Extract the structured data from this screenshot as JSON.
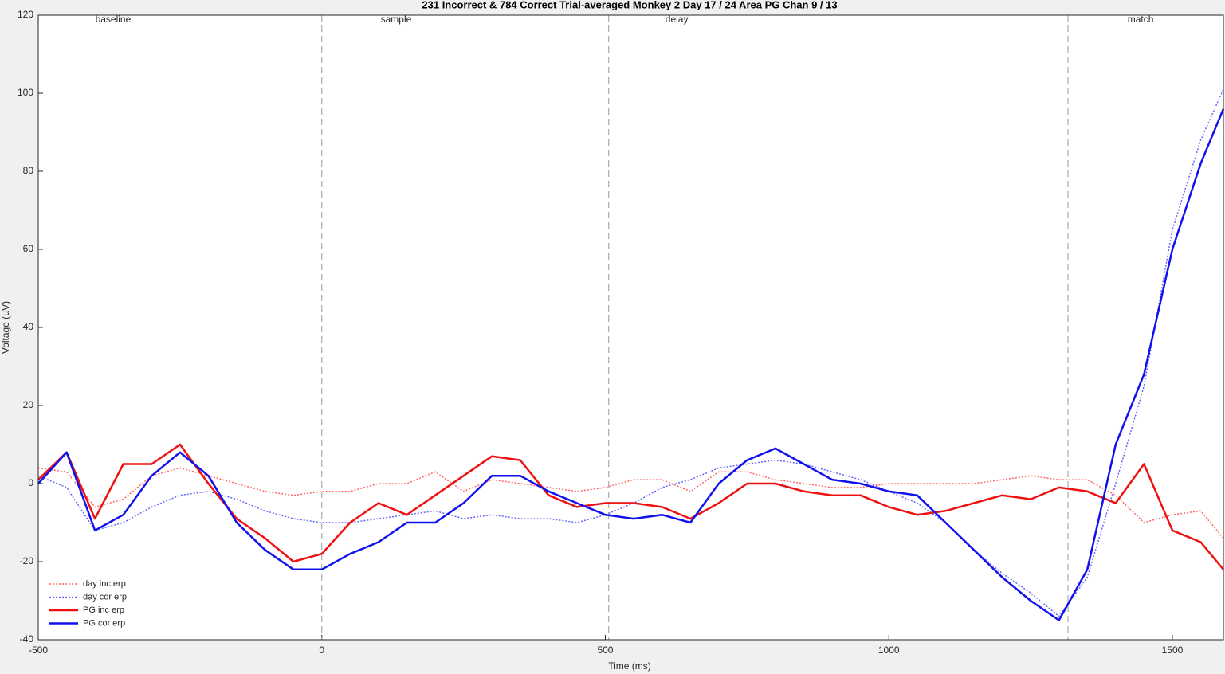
{
  "chart_data": {
    "type": "line",
    "title": "231 Incorrect & 784 Correct Trial-averaged Monkey 2 Day 17 / 24 Area PG Chan 9 / 13",
    "x_label": "Time (ms)",
    "y_label": "Voltage (µV)",
    "xlim": [
      -500,
      1590
    ],
    "ylim": [
      -40,
      120
    ],
    "xticks": [
      -500,
      0,
      500,
      1000,
      1500
    ],
    "yticks": [
      -40,
      -20,
      0,
      20,
      40,
      60,
      80,
      100,
      120
    ],
    "event_lines": [
      0,
      506,
      1316
    ],
    "phase_labels": [
      {
        "text": "baseline",
        "x": -368
      },
      {
        "text": "sample",
        "x": 131
      },
      {
        "text": "delay",
        "x": 626
      },
      {
        "text": "match",
        "x": 1444
      }
    ],
    "legend": "lower left",
    "x": [
      -500,
      -450,
      -400,
      -350,
      -300,
      -250,
      -200,
      -150,
      -100,
      -50,
      0,
      50,
      100,
      150,
      200,
      250,
      300,
      350,
      400,
      450,
      500,
      550,
      600,
      650,
      700,
      750,
      800,
      850,
      900,
      950,
      1000,
      1050,
      1100,
      1150,
      1200,
      1250,
      1300,
      1350,
      1400,
      1450,
      1500,
      1550,
      1590
    ],
    "series": [
      {
        "name": "day inc erp",
        "color": "#ff6666",
        "dash": "dotted",
        "width": 1.5,
        "values": [
          4,
          3,
          -6,
          -4,
          2,
          4,
          2,
          0,
          -2,
          -3,
          -2,
          -2,
          0,
          0,
          3,
          -2,
          1,
          0,
          -1,
          -2,
          -1,
          1,
          1,
          -2,
          3,
          3,
          1,
          0,
          -1,
          -1,
          0,
          0,
          0,
          0,
          1,
          2,
          1,
          1,
          -3,
          -10,
          -8,
          -7,
          -14
        ]
      },
      {
        "name": "day cor erp",
        "color": "#6666ff",
        "dash": "dotted",
        "width": 1.5,
        "values": [
          2,
          -1,
          -12,
          -10,
          -6,
          -3,
          -2,
          -4,
          -7,
          -9,
          -10,
          -10,
          -9,
          -8,
          -7,
          -9,
          -8,
          -9,
          -9,
          -10,
          -8,
          -5,
          -1,
          1,
          4,
          5,
          6,
          5,
          3,
          1,
          -2,
          -5,
          -10,
          -17,
          -23,
          -28,
          -34,
          -24,
          0,
          25,
          65,
          88,
          101
        ]
      },
      {
        "name": "PG inc erp",
        "color": "#ee1111",
        "dash": "solid",
        "width": 2.5,
        "values": [
          1,
          8,
          -9,
          5,
          5,
          10,
          0,
          -9,
          -14,
          -20,
          -18,
          -10,
          -5,
          -8,
          -3,
          2,
          7,
          6,
          -3,
          -6,
          -5,
          -5,
          -6,
          -9,
          -5,
          0,
          0,
          -2,
          -3,
          -3,
          -6,
          -8,
          -7,
          -5,
          -3,
          -4,
          -1,
          -2,
          -5,
          5,
          -12,
          -15,
          -22
        ]
      },
      {
        "name": "PG cor erp",
        "color": "#1111ee",
        "dash": "solid",
        "width": 2.5,
        "values": [
          0,
          8,
          -12,
          -8,
          2,
          8,
          2,
          -10,
          -17,
          -22,
          -22,
          -18,
          -15,
          -10,
          -10,
          -5,
          2,
          2,
          -2,
          -5,
          -8,
          -9,
          -8,
          -10,
          0,
          6,
          9,
          5,
          1,
          0,
          -2,
          -3,
          -10,
          -17,
          -24,
          -30,
          -35,
          -22,
          10,
          28,
          60,
          82,
          96
        ]
      }
    ]
  }
}
